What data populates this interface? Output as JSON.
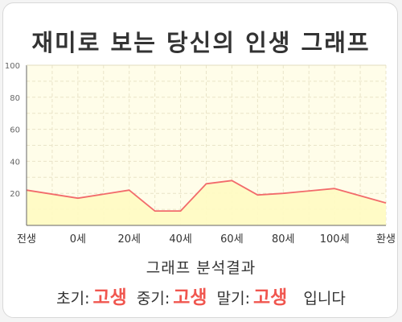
{
  "title": "재미로 보는 당신의 인생 그래프",
  "chart_data": {
    "type": "area",
    "x": [
      "전생",
      "0세",
      "20세",
      "40세",
      "60세",
      "80세",
      "100세",
      "환생"
    ],
    "series": [
      {
        "x": [
          -20,
          0,
          20,
          30,
          40,
          50,
          60,
          70,
          80,
          100,
          120
        ],
        "y": [
          22,
          17,
          22,
          9,
          9,
          26,
          28,
          19,
          20,
          23,
          14
        ]
      }
    ],
    "xlim": [
      -20,
      120
    ],
    "ylim": [
      0,
      100
    ],
    "yticks": [
      "20",
      "40",
      "60",
      "80",
      "100"
    ],
    "line_color": "#f26b6b",
    "fill_color": "#fffbc2",
    "plot_background": "#fffde9",
    "grid": true
  },
  "analysis": {
    "heading": "그래프 분석결과",
    "early_label": "초기:",
    "early_value": "고생",
    "middle_label": "중기:",
    "middle_value": "고생",
    "late_label": "말기:",
    "late_value": "고생",
    "suffix": "입니다"
  }
}
